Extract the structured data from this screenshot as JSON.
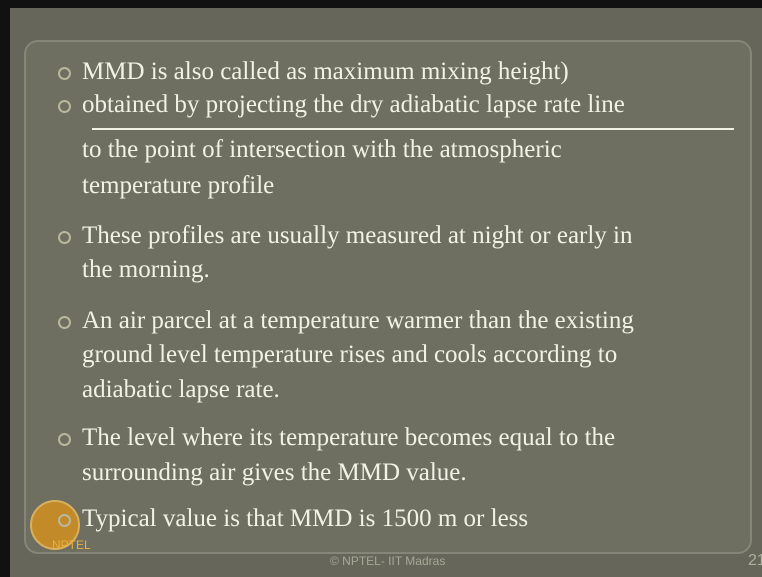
{
  "slide": {
    "bullets": [
      {
        "lines": [
          "MMD is also called as maximum mixing height)"
        ]
      },
      {
        "lines": [
          "obtained by projecting the dry adiabatic lapse rate line",
          "to the point of intersection with the atmospheric",
          "temperature profile"
        ]
      },
      {
        "lines": [
          "These profiles are usually measured at night or early in",
          "the morning."
        ]
      },
      {
        "lines": [
          "An air parcel at a temperature warmer than the existing",
          "ground level temperature rises and cools according to",
          "adiabatic lapse rate."
        ]
      },
      {
        "lines": [
          "The level where its temperature becomes equal to the",
          "surrounding air gives the MMD value."
        ]
      },
      {
        "lines": [
          "Typical value is that MMD is 1500 m or less"
        ]
      }
    ],
    "footer": "© NPTEL- IIT Madras",
    "page_number": "21",
    "logo": "NPTEL"
  }
}
